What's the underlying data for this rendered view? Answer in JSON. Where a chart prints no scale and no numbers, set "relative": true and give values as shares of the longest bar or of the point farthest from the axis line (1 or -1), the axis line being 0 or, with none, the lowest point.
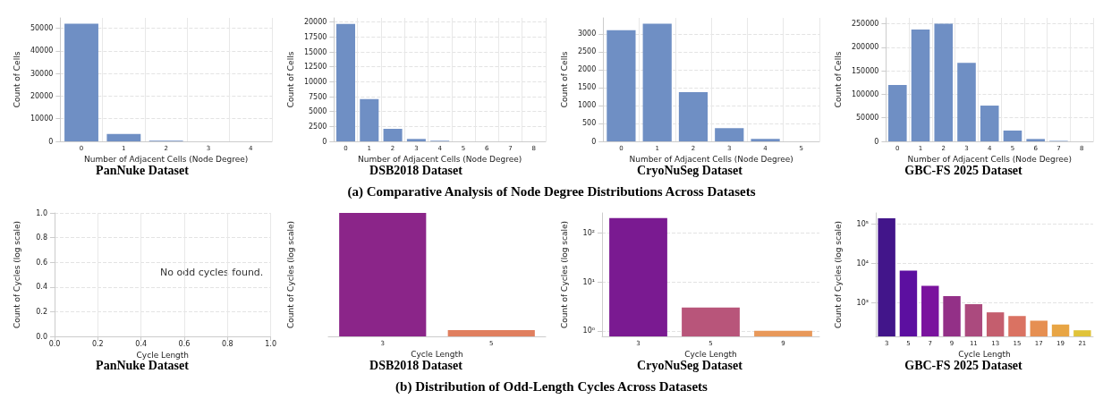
{
  "chart_data": [
    {
      "type": "bar",
      "title": "PanNuke Dataset",
      "xlabel": "Number of Adjacent Cells (Node Degree)",
      "ylabel": "Count of Cells",
      "annotations": [
        "(a) Comparative Analysis of Node Degree Distributions Across Datasets"
      ],
      "categories": [
        "0",
        "1",
        "2",
        "3",
        "4"
      ],
      "values": [
        52000,
        3300,
        300,
        0,
        0
      ],
      "color": "#6f8fc4",
      "ylim": [
        0,
        54600
      ],
      "yticks": [
        0,
        10000,
        20000,
        30000,
        40000,
        50000
      ],
      "grid": true
    },
    {
      "type": "bar",
      "title": "DSB2018 Dataset",
      "xlabel": "Number of Adjacent Cells (Node Degree)",
      "ylabel": "Count of Cells",
      "categories": [
        "0",
        "1",
        "2",
        "3",
        "4",
        "5",
        "6",
        "7",
        "8"
      ],
      "values": [
        19700,
        7100,
        2100,
        400,
        100,
        null,
        null,
        0,
        0
      ],
      "color": "#6f8fc4",
      "ylim": [
        0,
        20700
      ],
      "yticks": [
        0,
        2500,
        5000,
        7500,
        10000,
        12500,
        15000,
        17500,
        20000
      ],
      "grid": true
    },
    {
      "type": "bar",
      "title": "CryoNuSeg Dataset",
      "xlabel": "Number of Adjacent Cells (Node Degree)",
      "ylabel": "Count of Cells",
      "categories": [
        "0",
        "1",
        "2",
        "3",
        "4",
        "5"
      ],
      "values": [
        3100,
        3280,
        1370,
        370,
        70,
        null
      ],
      "color": "#6f8fc4",
      "ylim": [
        0,
        3444
      ],
      "yticks": [
        0,
        500,
        1000,
        1500,
        2000,
        2500,
        3000
      ],
      "grid": true
    },
    {
      "type": "bar",
      "title": "GBC-FS 2025 Dataset",
      "xlabel": "Number of Adjacent Cells (Node Degree)",
      "ylabel": "Count of Cells",
      "categories": [
        "0",
        "1",
        "2",
        "3",
        "4",
        "5",
        "6",
        "7",
        "8"
      ],
      "values": [
        120000,
        238000,
        250000,
        167000,
        76000,
        23000,
        5000,
        1000,
        null
      ],
      "color": "#6f8fc4",
      "ylim": [
        0,
        262500
      ],
      "yticks": [
        0,
        50000,
        100000,
        150000,
        200000,
        250000
      ],
      "grid": true
    },
    {
      "type": "scatter",
      "title": "PanNuke Dataset",
      "xlabel": "Cycle Length",
      "ylabel": "Count of Cycles (log scale)",
      "annotations": [
        "(b) Distribution of Odd-Length Cycles Across Datasets",
        "No odd cycles found."
      ],
      "xlim": [
        0,
        1
      ],
      "ylim": [
        0,
        1
      ],
      "xticks": [
        {
          "value": 0,
          "label": "0.0"
        },
        0.2,
        0.4,
        0.6,
        0.8,
        {
          "value": 1,
          "label": "1.0"
        }
      ],
      "yticks": [
        {
          "value": 0,
          "label": "0.0"
        },
        0.2,
        0.4,
        0.6,
        0.8,
        {
          "value": 1,
          "label": "1.0"
        }
      ],
      "grid": true
    },
    {
      "type": "bar",
      "title": "DSB2018 Dataset",
      "xlabel": "Cycle Length",
      "ylabel": "Count of Cycles (log scale)",
      "categories": [
        "3",
        "5"
      ],
      "values": [
        1,
        0.05
      ],
      "colors": [
        "#8b2589",
        "#e07f5f"
      ],
      "relative": true
    },
    {
      "type": "bar",
      "title": "CryoNuSeg Dataset",
      "xlabel": "Cycle Length",
      "ylabel": "Count of Cycles (log scale)",
      "categories": [
        "3",
        "5",
        "9"
      ],
      "values": [
        204,
        3,
        1
      ],
      "colors": [
        "#7a1a91",
        "#b8557a",
        "#e8985a"
      ],
      "log": true,
      "ylim": [
        0.77,
        260
      ],
      "yticks": [
        {
          "value": 1,
          "label": "10⁰"
        },
        {
          "value": 10,
          "label": "10¹"
        },
        {
          "value": 100,
          "label": "10²"
        }
      ],
      "grid": "y"
    },
    {
      "type": "bar",
      "title": "GBC-FS 2025 Dataset",
      "xlabel": "Cycle Length",
      "ylabel": "Count of Cycles (log scale)",
      "categories": [
        "3",
        "5",
        "7",
        "9",
        "11",
        "13",
        "15",
        "17",
        "19",
        "21"
      ],
      "values": [
        139000,
        6500,
        2700,
        1470,
        920,
        570,
        460,
        350,
        280,
        200
      ],
      "colors": [
        "#42158a",
        "#5c0fa0",
        "#7a139e",
        "#933087",
        "#ab4a7e",
        "#c45e6e",
        "#da7262",
        "#e68f52",
        "#e8a544",
        "#e0c33a"
      ],
      "log": true,
      "ylim": [
        140,
        190000
      ],
      "yticks": [
        {
          "value": 1000,
          "label": "10³"
        },
        {
          "value": 10000,
          "label": "10⁴"
        },
        {
          "value": 100000,
          "label": "10⁵"
        }
      ],
      "grid": "y"
    }
  ]
}
